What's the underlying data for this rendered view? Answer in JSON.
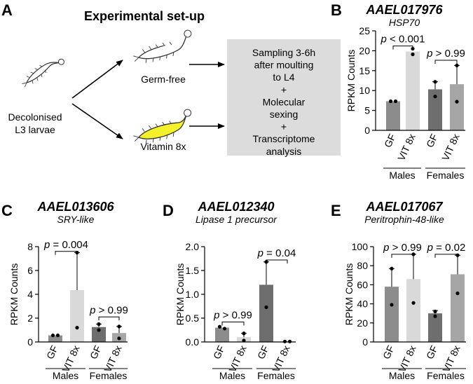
{
  "panel_a": {
    "letter": "A",
    "title": "Experimental set-up",
    "start_label_line1": "Decolonised",
    "start_label_line2": "L3 larvae",
    "branch_top_label": "Germ-free",
    "branch_bottom_label": "Vitamin 8x",
    "box_lines": [
      "Sampling 3-6h",
      "after moulting",
      "to L4",
      "+",
      "Molecular",
      "sexing",
      "+",
      "Transcriptome",
      "analysis"
    ],
    "colors": {
      "box_fill": "#dcdcdc",
      "larva_germfree": "#ffffff",
      "larva_vitamin": "#f4f02a",
      "outline": "#333333"
    }
  },
  "colors": {
    "GF_male": "#8c8c8c",
    "VIT_male": "#d9d9d9",
    "GF_female": "#6e6e6e",
    "VIT_female": "#a6a6a6"
  },
  "chart_data": [
    {
      "panel": "B",
      "type": "bar",
      "title": "AAEL017976",
      "subtitle": "HSP70",
      "ylabel": "RPKM Counts",
      "ylim": [
        0,
        25
      ],
      "yticks": [
        0,
        5,
        10,
        15,
        20,
        25
      ],
      "categories": [
        "GF",
        "VIT 8x",
        "GF",
        "VIT 8x"
      ],
      "groups": [
        "Males",
        "Females"
      ],
      "values": [
        7.3,
        19.8,
        10.3,
        11.6
      ],
      "error_up": [
        7.3,
        19.8,
        12.2,
        16.3
      ],
      "points": [
        [
          7.3,
          7.3
        ],
        [
          20.5,
          19.1
        ],
        [
          12.2,
          8.5
        ],
        [
          16.3,
          7.2
        ]
      ],
      "annotations": [
        {
          "pair": [
            0,
            1
          ],
          "prefix": "p",
          "text": " < 0.001",
          "y": 21.2
        },
        {
          "pair": [
            2,
            3
          ],
          "prefix": "p",
          "text": " > 0.99",
          "y": 17.6
        }
      ]
    },
    {
      "panel": "C",
      "type": "bar",
      "title": "AAEL013606",
      "subtitle": "SRY-like",
      "ylabel": "RPKM Counts",
      "ylim": [
        0,
        8
      ],
      "yticks": [
        0,
        2,
        4,
        6,
        8
      ],
      "categories": [
        "GF",
        "VIT 8x",
        "GF",
        "VIT 8x"
      ],
      "groups": [
        "Males",
        "Females"
      ],
      "values": [
        0.55,
        4.35,
        1.25,
        0.75
      ],
      "error_up": [
        0.6,
        7.5,
        1.5,
        1.3
      ],
      "points": [
        [
          0.55,
          0.55
        ],
        [
          7.5,
          1.2
        ],
        [
          1.5,
          1.0
        ],
        [
          1.3,
          0.3
        ]
      ],
      "annotations": [
        {
          "pair": [
            0,
            1
          ],
          "prefix": "p",
          "text": " = 0.004",
          "y": 7.6
        },
        {
          "pair": [
            2,
            3
          ],
          "prefix": "p",
          "text": " > 0.99",
          "y": 2.1
        }
      ]
    },
    {
      "panel": "D",
      "type": "bar",
      "title": "AAEL012340",
      "subtitle": "Lipase 1 precursor",
      "ylabel": "RPKM Counts",
      "ylim": [
        0,
        2.0
      ],
      "yticks": [
        0.0,
        0.5,
        1.0,
        1.5,
        2.0
      ],
      "categories": [
        "GF",
        "VIT 8x",
        "GF",
        "VIT 8x"
      ],
      "groups": [
        "Males",
        "Females"
      ],
      "values": [
        0.3,
        0.1,
        1.2,
        0.01
      ],
      "error_up": [
        0.32,
        0.18,
        1.68,
        0.01
      ],
      "points": [
        [
          0.32,
          0.28
        ],
        [
          0.18,
          0.03
        ],
        [
          1.68,
          0.73
        ],
        [
          0.01,
          0.01
        ]
      ],
      "annotations": [
        {
          "pair": [
            0,
            1
          ],
          "prefix": "p",
          "text": " > 0.99",
          "y": 0.42
        },
        {
          "pair": [
            2,
            3
          ],
          "prefix": "p",
          "text": " = 0.04",
          "y": 1.72
        }
      ]
    },
    {
      "panel": "E",
      "type": "bar",
      "title": "AAEL017067",
      "subtitle": "Peritrophin-48-like",
      "ylabel": "RPKM Counts",
      "ylim": [
        0,
        100
      ],
      "yticks": [
        0,
        20,
        40,
        60,
        80,
        100
      ],
      "categories": [
        "GF",
        "VIT 8x",
        "GF",
        "VIT 8x"
      ],
      "groups": [
        "Males",
        "Females"
      ],
      "values": [
        58,
        66,
        30,
        71
      ],
      "error_up": [
        77,
        92,
        33,
        91
      ],
      "points": [
        [
          77,
          39
        ],
        [
          92,
          41
        ],
        [
          32,
          27
        ],
        [
          91,
          51
        ]
      ],
      "annotations": [
        {
          "pair": [
            0,
            1
          ],
          "prefix": "p",
          "text": " > 0.99",
          "y": 92
        },
        {
          "pair": [
            2,
            3
          ],
          "prefix": "p",
          "text": " = 0.02",
          "y": 92
        }
      ]
    }
  ]
}
